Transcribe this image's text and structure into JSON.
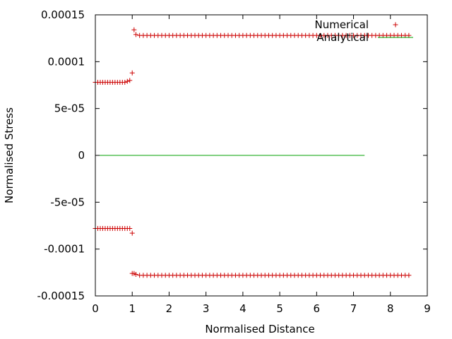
{
  "chart_data": {
    "type": "scatter",
    "xlabel": "Normalised Distance",
    "ylabel": "Normalised Stress",
    "xlim": [
      0,
      9
    ],
    "ylim": [
      -0.00015,
      0.00015
    ],
    "x_ticks": [
      "0",
      "1",
      "2",
      "3",
      "4",
      "5",
      "6",
      "7",
      "8",
      "9"
    ],
    "y_ticks": [
      "-0.00015",
      "-0.0001",
      "-5e-05",
      "0",
      "5e-05",
      "0.0001",
      "0.00015"
    ],
    "y_tick_values": [
      -0.00015,
      -0.0001,
      -5e-05,
      0,
      5e-05,
      0.0001,
      0.00015
    ],
    "grid": false,
    "legend_position": "top-right",
    "colors": {
      "numerical": "#cc0000",
      "analytical": "#00a000"
    },
    "series": [
      {
        "name": "Numerical",
        "style": "points",
        "marker": "plus",
        "groups": [
          {
            "x": [
              0.0,
              0.0667,
              0.1333,
              0.2,
              0.2667,
              0.3333,
              0.4,
              0.4667,
              0.5333,
              0.6,
              0.6667,
              0.7333,
              0.8,
              0.8667,
              0.9333,
              1.0
            ],
            "y": [
              7.8e-05,
              7.8e-05,
              7.8e-05,
              7.8e-05,
              7.8e-05,
              7.8e-05,
              7.8e-05,
              7.8e-05,
              7.8e-05,
              7.8e-05,
              7.8e-05,
              7.8e-05,
              7.8e-05,
              7.9e-05,
              8e-05,
              8.8e-05
            ]
          },
          {
            "x": [
              1.05,
              1.1,
              1.2,
              1.3,
              1.4,
              1.5,
              1.6,
              1.7,
              1.8,
              1.9,
              2.0,
              2.1,
              2.2,
              2.3,
              2.4,
              2.5,
              2.6,
              2.7,
              2.8,
              2.9,
              3.0,
              3.1,
              3.2,
              3.3,
              3.4,
              3.5,
              3.6,
              3.7,
              3.8,
              3.9,
              4.0,
              4.1,
              4.2,
              4.3,
              4.4,
              4.5,
              4.6,
              4.7,
              4.8,
              4.9,
              5.0,
              5.1,
              5.2,
              5.3,
              5.4,
              5.5,
              5.6,
              5.7,
              5.8,
              5.9,
              6.0,
              6.1,
              6.2,
              6.3,
              6.4,
              6.5,
              6.6,
              6.7,
              6.8,
              6.9,
              7.0,
              7.1,
              7.2,
              7.3,
              7.4,
              7.5,
              7.6,
              7.7,
              7.8,
              7.9,
              8.0,
              8.1,
              8.2,
              8.3,
              8.4,
              8.5
            ],
            "y": [
              0.000134,
              0.000129,
              0.000128,
              0.000128,
              0.000128,
              0.000128,
              0.000128,
              0.000128,
              0.000128,
              0.000128,
              0.000128,
              0.000128,
              0.000128,
              0.000128,
              0.000128,
              0.000128,
              0.000128,
              0.000128,
              0.000128,
              0.000128,
              0.000128,
              0.000128,
              0.000128,
              0.000128,
              0.000128,
              0.000128,
              0.000128,
              0.000128,
              0.000128,
              0.000128,
              0.000128,
              0.000128,
              0.000128,
              0.000128,
              0.000128,
              0.000128,
              0.000128,
              0.000128,
              0.000128,
              0.000128,
              0.000128,
              0.000128,
              0.000128,
              0.000128,
              0.000128,
              0.000128,
              0.000128,
              0.000128,
              0.000128,
              0.000128,
              0.000128,
              0.000128,
              0.000128,
              0.000128,
              0.000128,
              0.000128,
              0.000128,
              0.000128,
              0.000128,
              0.000128,
              0.000128,
              0.000128,
              0.000128,
              0.000128,
              0.000128,
              0.000128,
              0.000128,
              0.000128,
              0.000128,
              0.000128,
              0.000128,
              0.000128,
              0.000128,
              0.000128,
              0.000128,
              0.000128
            ]
          },
          {
            "x": [
              0.0,
              0.0667,
              0.1333,
              0.2,
              0.2667,
              0.3333,
              0.4,
              0.4667,
              0.5333,
              0.6,
              0.6667,
              0.7333,
              0.8,
              0.8667,
              0.9333,
              1.0
            ],
            "y": [
              -7.8e-05,
              -7.8e-05,
              -7.8e-05,
              -7.8e-05,
              -7.8e-05,
              -7.8e-05,
              -7.8e-05,
              -7.8e-05,
              -7.8e-05,
              -7.8e-05,
              -7.8e-05,
              -7.8e-05,
              -7.8e-05,
              -7.8e-05,
              -7.8e-05,
              -8.3e-05
            ]
          },
          {
            "x": [
              1.0,
              1.05,
              1.1,
              1.2,
              1.3,
              1.4,
              1.5,
              1.6,
              1.7,
              1.8,
              1.9,
              2.0,
              2.1,
              2.2,
              2.3,
              2.4,
              2.5,
              2.6,
              2.7,
              2.8,
              2.9,
              3.0,
              3.1,
              3.2,
              3.3,
              3.4,
              3.5,
              3.6,
              3.7,
              3.8,
              3.9,
              4.0,
              4.1,
              4.2,
              4.3,
              4.4,
              4.5,
              4.6,
              4.7,
              4.8,
              4.9,
              5.0,
              5.1,
              5.2,
              5.3,
              5.4,
              5.5,
              5.6,
              5.7,
              5.8,
              5.9,
              6.0,
              6.1,
              6.2,
              6.3,
              6.4,
              6.5,
              6.6,
              6.7,
              6.8,
              6.9,
              7.0,
              7.1,
              7.2,
              7.3,
              7.4,
              7.5,
              7.6,
              7.7,
              7.8,
              7.9,
              8.0,
              8.1,
              8.2,
              8.3,
              8.4,
              8.5
            ],
            "y": [
              -0.000126,
              -0.000126,
              -0.000127,
              -0.000128,
              -0.000128,
              -0.000128,
              -0.000128,
              -0.000128,
              -0.000128,
              -0.000128,
              -0.000128,
              -0.000128,
              -0.000128,
              -0.000128,
              -0.000128,
              -0.000128,
              -0.000128,
              -0.000128,
              -0.000128,
              -0.000128,
              -0.000128,
              -0.000128,
              -0.000128,
              -0.000128,
              -0.000128,
              -0.000128,
              -0.000128,
              -0.000128,
              -0.000128,
              -0.000128,
              -0.000128,
              -0.000128,
              -0.000128,
              -0.000128,
              -0.000128,
              -0.000128,
              -0.000128,
              -0.000128,
              -0.000128,
              -0.000128,
              -0.000128,
              -0.000128,
              -0.000128,
              -0.000128,
              -0.000128,
              -0.000128,
              -0.000128,
              -0.000128,
              -0.000128,
              -0.000128,
              -0.000128,
              -0.000128,
              -0.000128,
              -0.000128,
              -0.000128,
              -0.000128,
              -0.000128,
              -0.000128,
              -0.000128,
              -0.000128,
              -0.000128,
              -0.000128,
              -0.000128,
              -0.000128,
              -0.000128,
              -0.000128,
              -0.000128,
              -0.000128,
              -0.000128,
              -0.000128,
              -0.000128,
              -0.000128,
              -0.000128,
              -0.000128,
              -0.000128,
              -0.000128,
              -0.000128
            ]
          }
        ]
      },
      {
        "name": "Analytical",
        "style": "line",
        "x": [
          0,
          7.3
        ],
        "y": [
          0,
          0
        ]
      }
    ]
  }
}
